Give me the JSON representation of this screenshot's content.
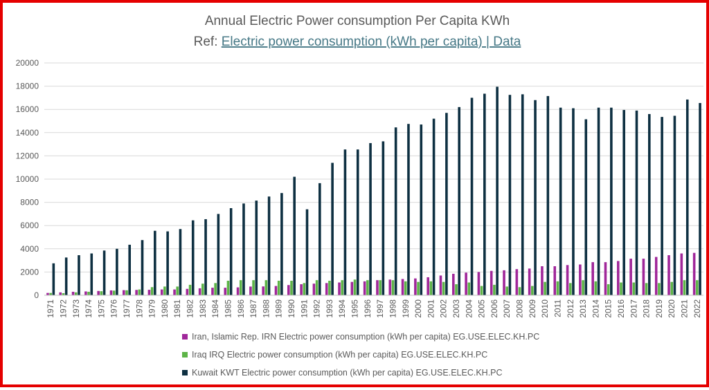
{
  "chart_data": {
    "type": "bar",
    "title": "Annual Electric Power consumption Per Capita KWh",
    "subtitle_prefix": "Ref: ",
    "subtitle_link": "Electric power consumption (kWh per capita) | Data",
    "xlabel": "",
    "ylabel": "",
    "ylim": [
      0,
      20000
    ],
    "yticks": [
      "0",
      "2000",
      "4000",
      "6000",
      "8000",
      "10000",
      "12000",
      "14000",
      "16000",
      "18000",
      "20000"
    ],
    "grid": true,
    "legend_position": "bottom",
    "categories": [
      "1971",
      "1972",
      "1973",
      "1974",
      "1975",
      "1976",
      "1977",
      "1978",
      "1979",
      "1980",
      "1981",
      "1982",
      "1983",
      "1984",
      "1985",
      "1986",
      "1987",
      "1988",
      "1989",
      "1990",
      "1991",
      "1992",
      "1993",
      "1994",
      "1995",
      "1996",
      "1997",
      "1998",
      "1999",
      "2000",
      "2001",
      "2002",
      "2003",
      "2004",
      "2005",
      "2006",
      "2007",
      "2008",
      "2009",
      "2010",
      "2011",
      "2012",
      "2013",
      "2014",
      "2015",
      "2016",
      "2017",
      "2018",
      "2019",
      "2020",
      "2021",
      "2022"
    ],
    "series": [
      {
        "name": "Iran, Islamic Rep. IRN Electric power consumption (kWh per capita) EG.USE.ELEC.KH.PC",
        "color": "#a0279a",
        "values": [
          200,
          250,
          300,
          330,
          370,
          420,
          440,
          460,
          470,
          500,
          500,
          550,
          600,
          650,
          650,
          680,
          750,
          760,
          800,
          880,
          950,
          1000,
          1050,
          1100,
          1150,
          1200,
          1300,
          1350,
          1400,
          1450,
          1550,
          1700,
          1850,
          1950,
          2000,
          2100,
          2150,
          2250,
          2300,
          2500,
          2500,
          2600,
          2650,
          2850,
          2850,
          2950,
          3150,
          3150,
          3300,
          3450,
          3600,
          3650
        ]
      },
      {
        "name": "Iraq IRQ Electric power consumption (kWh per capita) EG.USE.ELEC.KH.PC",
        "color": "#5db447",
        "values": [
          200,
          180,
          250,
          300,
          350,
          400,
          430,
          500,
          700,
          750,
          750,
          900,
          1000,
          1050,
          1250,
          1300,
          1300,
          1300,
          1250,
          1250,
          1050,
          1300,
          1250,
          1300,
          1350,
          1300,
          1300,
          1300,
          1200,
          1150,
          1200,
          1150,
          950,
          1100,
          800,
          900,
          750,
          700,
          800,
          1150,
          1200,
          1050,
          1300,
          1200,
          950,
          1100,
          1100,
          1050,
          1050,
          1150,
          1300,
          1300
        ]
      },
      {
        "name": "Kuwait KWT Electric power consumption (kWh per capita) EG.USE.ELEC.KH.PC",
        "color": "#0e3042",
        "values": [
          2750,
          3250,
          3450,
          3600,
          3850,
          4000,
          4350,
          4750,
          5550,
          5500,
          5700,
          6450,
          6550,
          7000,
          7500,
          7900,
          8150,
          8500,
          8800,
          10200,
          7400,
          9650,
          11400,
          12550,
          12550,
          13100,
          13250,
          14450,
          14750,
          14700,
          15200,
          15700,
          16200,
          17000,
          17350,
          17950,
          17250,
          17300,
          16800,
          17150,
          16150,
          16100,
          15150,
          16150,
          16150,
          15950,
          15900,
          15600,
          15350,
          15450,
          16850,
          16550
        ]
      }
    ]
  }
}
